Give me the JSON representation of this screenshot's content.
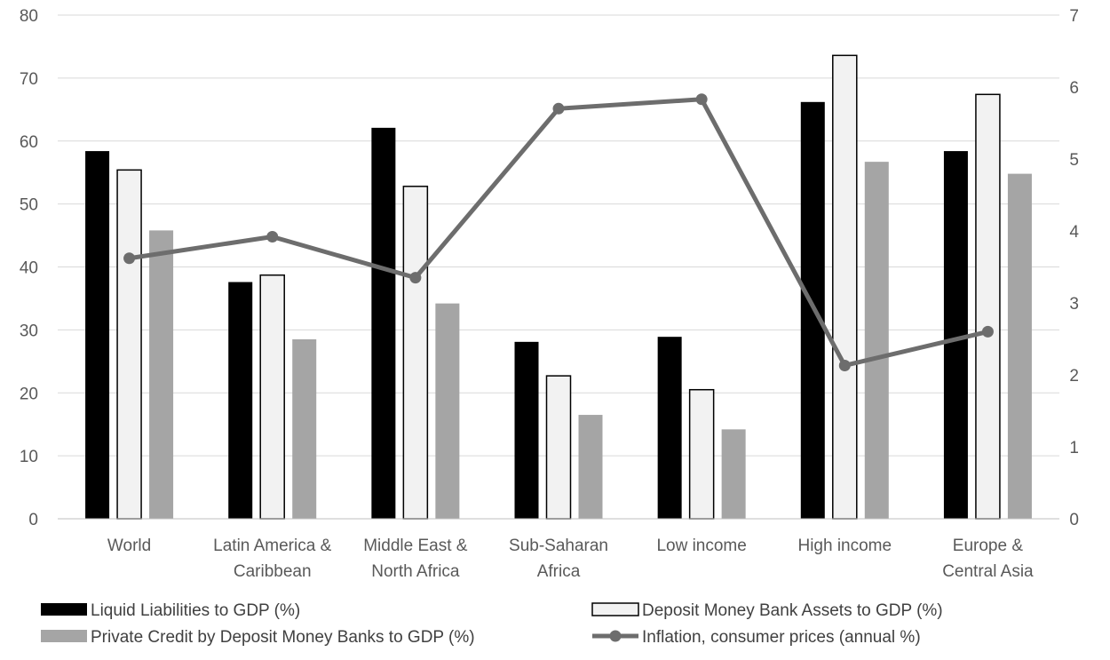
{
  "chart_data": {
    "type": "bar",
    "title": "",
    "xlabel": "",
    "ylabel": "",
    "y2label": "",
    "categories": [
      [
        "World"
      ],
      [
        "Latin America &",
        "Caribbean"
      ],
      [
        "Middle East &",
        "North Africa"
      ],
      [
        "Sub-Saharan",
        "Africa"
      ],
      [
        "Low income"
      ],
      [
        "High income"
      ],
      [
        "Europe &",
        "Central Asia"
      ]
    ],
    "ylim": [
      0,
      80
    ],
    "yticks": [
      "0",
      "10",
      "20",
      "30",
      "40",
      "50",
      "60",
      "70",
      "80"
    ],
    "y2lim": [
      0,
      7
    ],
    "y2ticks": [
      "0",
      "1",
      "2",
      "3",
      "4",
      "5",
      "6",
      "7"
    ],
    "grid": true,
    "legend_position": "bottom",
    "series": [
      {
        "name": "Liquid Liabilities to GDP (%)",
        "kind": "bar",
        "axis": "left",
        "fill": "#000000",
        "stroke": "#000000",
        "values": [
          58.4,
          37.6,
          62.1,
          28.1,
          28.9,
          66.2,
          58.4
        ]
      },
      {
        "name": "Deposit Money Bank Assets to GDP (%)",
        "kind": "bar",
        "axis": "left",
        "fill": "#f2f2f2",
        "stroke": "#000000",
        "values": [
          55.4,
          38.7,
          52.8,
          22.7,
          20.5,
          73.6,
          67.4
        ]
      },
      {
        "name": "Private Credit by Deposit Money Banks to GDP (%)",
        "kind": "bar",
        "axis": "left",
        "fill": "#a5a5a5",
        "stroke": "#a5a5a5",
        "values": [
          45.8,
          28.5,
          34.2,
          16.5,
          14.2,
          56.7,
          54.8
        ]
      },
      {
        "name": "Inflation, consumer prices (annual %)",
        "kind": "line",
        "axis": "right",
        "color": "#6d6d6d",
        "values": [
          3.62,
          3.92,
          3.35,
          5.7,
          5.83,
          2.13,
          2.6
        ]
      }
    ]
  }
}
